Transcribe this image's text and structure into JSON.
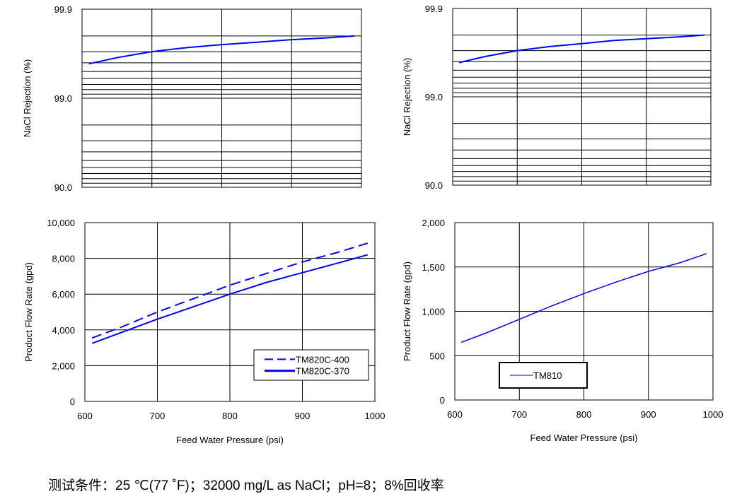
{
  "chart_data": [
    {
      "id": "rejection-tm820c",
      "type": "line",
      "title": "",
      "xlabel": "",
      "ylabel": "NaCl Rejection (%)",
      "yscale": "log-complement",
      "ylim": [
        90.0,
        99.9
      ],
      "yticks": [
        "99.9",
        "99.0",
        "90.0"
      ],
      "yticks_values": [
        99.9,
        99.0,
        90.0
      ],
      "xlim": [
        600,
        1000
      ],
      "xticks_values": [
        600,
        700,
        800,
        900,
        1000
      ],
      "xticks": [],
      "grid": true,
      "series": [
        {
          "name": "TM820C",
          "style": "solid",
          "color": "#0000ff",
          "x": [
            610,
            650,
            700,
            750,
            800,
            850,
            900,
            950,
            990
          ],
          "y": [
            99.59,
            99.65,
            99.7,
            99.73,
            99.75,
            99.765,
            99.78,
            99.79,
            99.8
          ]
        }
      ],
      "legend": null
    },
    {
      "id": "rejection-tm810",
      "type": "line",
      "title": "",
      "xlabel": "",
      "ylabel": "NaCl Rejection (%)",
      "yscale": "log-complement",
      "ylim": [
        90.0,
        99.9
      ],
      "yticks": [
        "99.9",
        "99.0",
        "90.0"
      ],
      "yticks_values": [
        99.9,
        99.0,
        90.0
      ],
      "xlim": [
        600,
        1000
      ],
      "xticks_values": [
        600,
        700,
        800,
        900,
        1000
      ],
      "xticks": [],
      "grid": true,
      "series": [
        {
          "name": "TM810",
          "style": "solid",
          "color": "#0000ff",
          "x": [
            610,
            650,
            700,
            750,
            800,
            850,
            900,
            950,
            990
          ],
          "y": [
            99.59,
            99.65,
            99.7,
            99.73,
            99.75,
            99.77,
            99.78,
            99.79,
            99.8
          ]
        }
      ],
      "legend": null
    },
    {
      "id": "flow-tm820c",
      "type": "line",
      "title": "",
      "xlabel": "Feed Water Pressure (psi)",
      "ylabel": "Product Flow Rate (gpd)",
      "ylim": [
        0,
        10000
      ],
      "yticks": [
        "0",
        "2,000",
        "4,000",
        "6,000",
        "8,000",
        "10,000"
      ],
      "yticks_values": [
        0,
        2000,
        4000,
        6000,
        8000,
        10000
      ],
      "xlim": [
        600,
        1000
      ],
      "xticks": [
        "600",
        "700",
        "800",
        "900",
        "1000"
      ],
      "xticks_values": [
        600,
        700,
        800,
        900,
        1000
      ],
      "grid": true,
      "series": [
        {
          "name": "TM820C-400",
          "style": "dashed",
          "color": "#0000ff",
          "x": [
            610,
            650,
            700,
            750,
            800,
            850,
            900,
            950,
            990
          ],
          "y": [
            3550,
            4150,
            5000,
            5750,
            6500,
            7150,
            7800,
            8350,
            8850
          ]
        },
        {
          "name": "TM820C-370",
          "style": "solid",
          "color": "#0000ff",
          "x": [
            610,
            650,
            700,
            750,
            800,
            850,
            900,
            950,
            990
          ],
          "y": [
            3250,
            3850,
            4600,
            5300,
            6000,
            6650,
            7200,
            7750,
            8200
          ]
        }
      ],
      "legend": {
        "placement": "bottom-right",
        "entries": [
          "TM820C-400",
          "TM820C-370"
        ]
      }
    },
    {
      "id": "flow-tm810",
      "type": "line",
      "title": "",
      "xlabel": "Feed Water Pressure (psi)",
      "ylabel": "Product Flow Rate (gpd)",
      "ylim": [
        0,
        2000
      ],
      "yticks": [
        "0",
        "500",
        "1,000",
        "1,500",
        "2,000"
      ],
      "yticks_values": [
        0,
        500,
        1000,
        1500,
        2000
      ],
      "xlim": [
        600,
        1000
      ],
      "xticks": [
        "600",
        "700",
        "800",
        "900",
        "1000"
      ],
      "xticks_values": [
        600,
        700,
        800,
        900,
        1000
      ],
      "grid": true,
      "series": [
        {
          "name": "TM810",
          "style": "thin",
          "color": "#0000ff",
          "x": [
            610,
            650,
            700,
            730,
            750,
            800,
            850,
            900,
            950,
            990
          ],
          "y": [
            650,
            760,
            910,
            1000,
            1060,
            1200,
            1330,
            1450,
            1550,
            1650
          ]
        }
      ],
      "legend": {
        "placement": "bottom-left",
        "entries": [
          "TM810"
        ]
      }
    }
  ],
  "footer": {
    "conditions": "测试条件：25 ℃(77 ˚F)；32000 mg/L as NaCl；pH=8；8%回收率"
  }
}
